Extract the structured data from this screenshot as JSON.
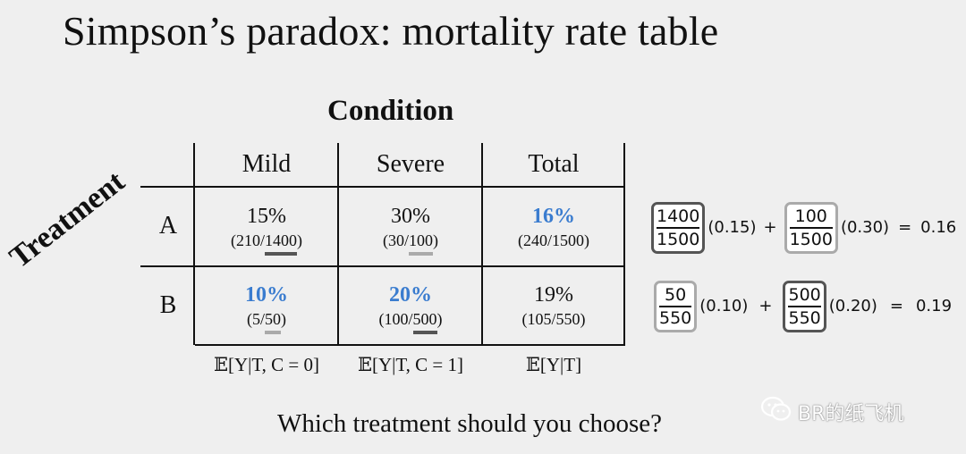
{
  "title": "Simpson’s paradox: mortality rate table",
  "condition_label": "Condition",
  "treatment_label": "Treatment",
  "columns": [
    "Mild",
    "Severe",
    "Total"
  ],
  "rows": [
    {
      "label": "A",
      "cells": [
        {
          "pct": "15%",
          "pre": "(210/",
          "ul": "1400",
          "post": ")",
          "ul_style": "dark",
          "highlight": false
        },
        {
          "pct": "30%",
          "pre": "(30/",
          "ul": "100",
          "post": ")",
          "ul_style": "light",
          "highlight": false
        },
        {
          "pct": "16%",
          "pre": "(240/1500)",
          "ul": "",
          "post": "",
          "ul_style": "",
          "highlight": true
        }
      ]
    },
    {
      "label": "B",
      "cells": [
        {
          "pct": "10%",
          "pre": "(5/",
          "ul": "50",
          "post": ")",
          "ul_style": "light",
          "highlight": true
        },
        {
          "pct": "20%",
          "pre": "(100/",
          "ul": "500",
          "post": ")",
          "ul_style": "dark",
          "highlight": true
        },
        {
          "pct": "19%",
          "pre": "(105/550)",
          "ul": "",
          "post": "",
          "ul_style": "",
          "highlight": false
        }
      ]
    }
  ],
  "expectations": [
    "𝔼[Y|T, C = 0]",
    "𝔼[Y|T, C = 1]",
    "𝔼[Y|T]"
  ],
  "formulas": [
    {
      "f1": {
        "num": "1400",
        "den": "1500",
        "style": "dark"
      },
      "c1": "(0.15)",
      "f2": {
        "num": "100",
        "den": "1500",
        "style": "light"
      },
      "c2": "(0.30)",
      "result": "0.16"
    },
    {
      "f1": {
        "num": "50",
        "den": "550",
        "style": "light"
      },
      "c1": "(0.10)",
      "f2": {
        "num": "500",
        "den": "550",
        "style": "dark"
      },
      "c2": "(0.20)",
      "result": "0.19"
    }
  ],
  "plus": "+",
  "equals": "=",
  "question": "Which treatment should you choose?",
  "watermark": "BR的纸飞机",
  "colors": {
    "highlight": "#3a7ccf",
    "dark_box": "#555555",
    "light_box": "#aaaaaa",
    "background": "#efefef"
  },
  "icons": {
    "watermark": "wechat-icon"
  }
}
